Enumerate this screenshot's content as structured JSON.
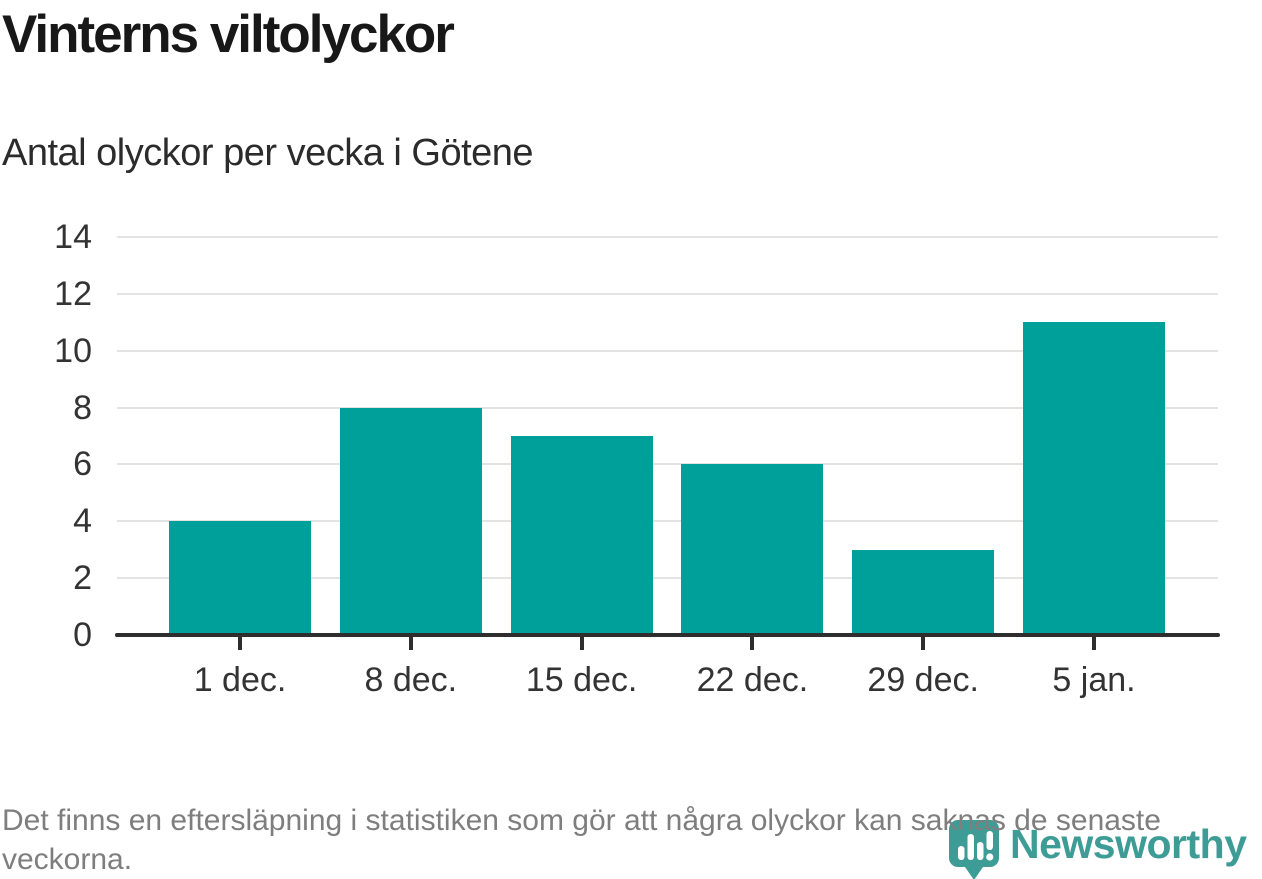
{
  "header": {
    "title": "Vinterns viltolyckor",
    "subtitle": "Antal olyckor per vecka i Götene"
  },
  "chart_data": {
    "type": "bar",
    "categories": [
      "1 dec.",
      "8 dec.",
      "15 dec.",
      "22 dec.",
      "29 dec.",
      "5 jan."
    ],
    "values": [
      4,
      8,
      7,
      6,
      3,
      11
    ],
    "title": "Vinterns viltolyckor",
    "subtitle": "Antal olyckor per vecka i Götene",
    "xlabel": "",
    "ylabel": "",
    "ylim": [
      0,
      14
    ],
    "yticks": [
      0,
      2,
      4,
      6,
      8,
      10,
      12,
      14
    ],
    "grid": true,
    "legend": false,
    "bar_color": "#00a09a"
  },
  "footer": {
    "note": "Det finns en eftersläpning i statistiken som gör att några olyckor kan saknas de senaste veckorna.",
    "brand": {
      "name": "Newsworthy",
      "color": "#3d9c95",
      "icon": "newsworthy-chart-bubble-icon"
    }
  },
  "colors": {
    "bar": "#00a09a",
    "grid": "#e3e3e3",
    "axis": "#2e2e2e",
    "tick_text": "#333333",
    "muted_text": "#7e7e7e",
    "brand": "#3d9c95"
  }
}
